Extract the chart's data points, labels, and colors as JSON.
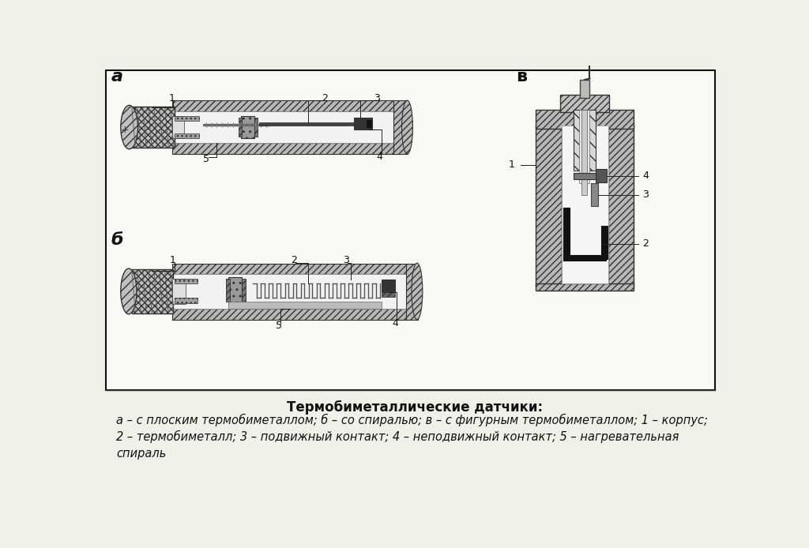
{
  "background_color": "#f0f0eb",
  "title_bold": "Термобиметаллические датчики:",
  "caption_line1": "а – с плоским термобиметаллом; б – со спиралью; в – с фигурным термобиметаллом; 1 – корпус;",
  "caption_line2": "2 – термобиметалл; 3 – подвижный контакт; 4 – неподвижный контакт; 5 – нагревательная",
  "caption_line3": "спираль",
  "label_a": "а",
  "label_b": "б",
  "label_v": "в"
}
